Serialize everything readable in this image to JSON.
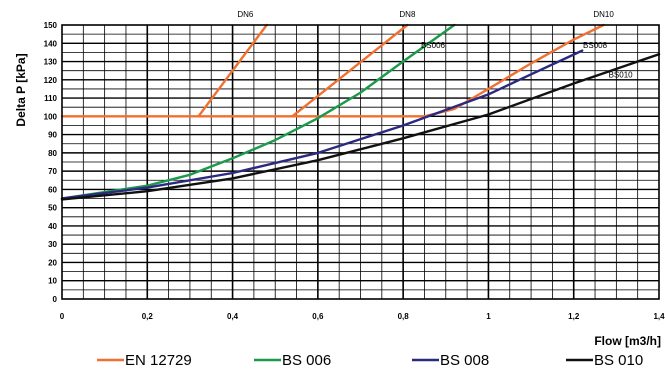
{
  "chart_data": {
    "type": "line",
    "xlabel": "Flow [m3/h]",
    "ylabel": "Delta P [kPa]",
    "xlim": [
      0,
      1.4
    ],
    "ylim": [
      0,
      150
    ],
    "x_ticks": [
      0,
      0.2,
      0.4,
      0.6,
      0.8,
      1,
      1.2,
      1.4
    ],
    "x_tick_labels": [
      "0",
      "0,2",
      "0,4",
      "0,6",
      "0,8",
      "1",
      "1,2",
      "1,4"
    ],
    "y_ticks": [
      0,
      10,
      20,
      30,
      40,
      50,
      60,
      70,
      80,
      90,
      100,
      110,
      120,
      130,
      140,
      150
    ],
    "y_tick_labels": [
      "0",
      "10",
      "20",
      "30",
      "40",
      "50",
      "60",
      "70",
      "80",
      "90",
      "100",
      "110",
      "120",
      "130",
      "140",
      "150"
    ],
    "minor_x_step": 0.05,
    "minor_y_step": 5,
    "grid": true,
    "legend_position": "bottom",
    "series": [
      {
        "name": "EN 12729",
        "color": "#f07030",
        "segments": [
          [
            [
              0,
              100
            ],
            [
              0.32,
              100
            ],
            [
              0.48,
              150
            ]
          ],
          [
            [
              0.32,
              100
            ],
            [
              0.54,
              100
            ],
            [
              0.81,
              150
            ]
          ],
          [
            [
              0.54,
              100
            ],
            [
              0.85,
              100
            ],
            [
              0.92,
              104
            ],
            [
              1.0,
              115
            ],
            [
              1.1,
              129
            ],
            [
              1.2,
              142
            ],
            [
              1.27,
              150
            ]
          ]
        ]
      },
      {
        "name": "BS 006",
        "color": "#1a9a4a",
        "segments": [
          [
            [
              0,
              55
            ],
            [
              0.1,
              58.5
            ],
            [
              0.2,
              62
            ],
            [
              0.3,
              68
            ],
            [
              0.4,
              77
            ],
            [
              0.5,
              87
            ],
            [
              0.6,
              99
            ],
            [
              0.7,
              113
            ],
            [
              0.8,
              130
            ],
            [
              0.92,
              150
            ]
          ]
        ]
      },
      {
        "name": "BS 008",
        "color": "#2a2a80",
        "segments": [
          [
            [
              0,
              55
            ],
            [
              0.2,
              61
            ],
            [
              0.4,
              69
            ],
            [
              0.6,
              80
            ],
            [
              0.8,
              95
            ],
            [
              1.0,
              112
            ],
            [
              1.1,
              123
            ],
            [
              1.22,
              136
            ]
          ]
        ]
      },
      {
        "name": "BS 010",
        "color": "#111111",
        "segments": [
          [
            [
              0,
              54.5
            ],
            [
              0.2,
              59
            ],
            [
              0.4,
              66
            ],
            [
              0.6,
              76
            ],
            [
              0.8,
              88
            ],
            [
              1.0,
              101
            ],
            [
              1.2,
              118
            ],
            [
              1.4,
              134
            ]
          ]
        ]
      }
    ],
    "annotations": [
      {
        "text": "DN6",
        "x": 0.43,
        "y": 156
      },
      {
        "text": "DN8",
        "x": 0.81,
        "y": 156
      },
      {
        "text": "DN10",
        "x": 1.27,
        "y": 156
      },
      {
        "text": "BS006",
        "x": 0.87,
        "y": 139
      },
      {
        "text": "BS008",
        "x": 1.25,
        "y": 139
      },
      {
        "text": "BS010",
        "x": 1.31,
        "y": 123
      }
    ]
  }
}
